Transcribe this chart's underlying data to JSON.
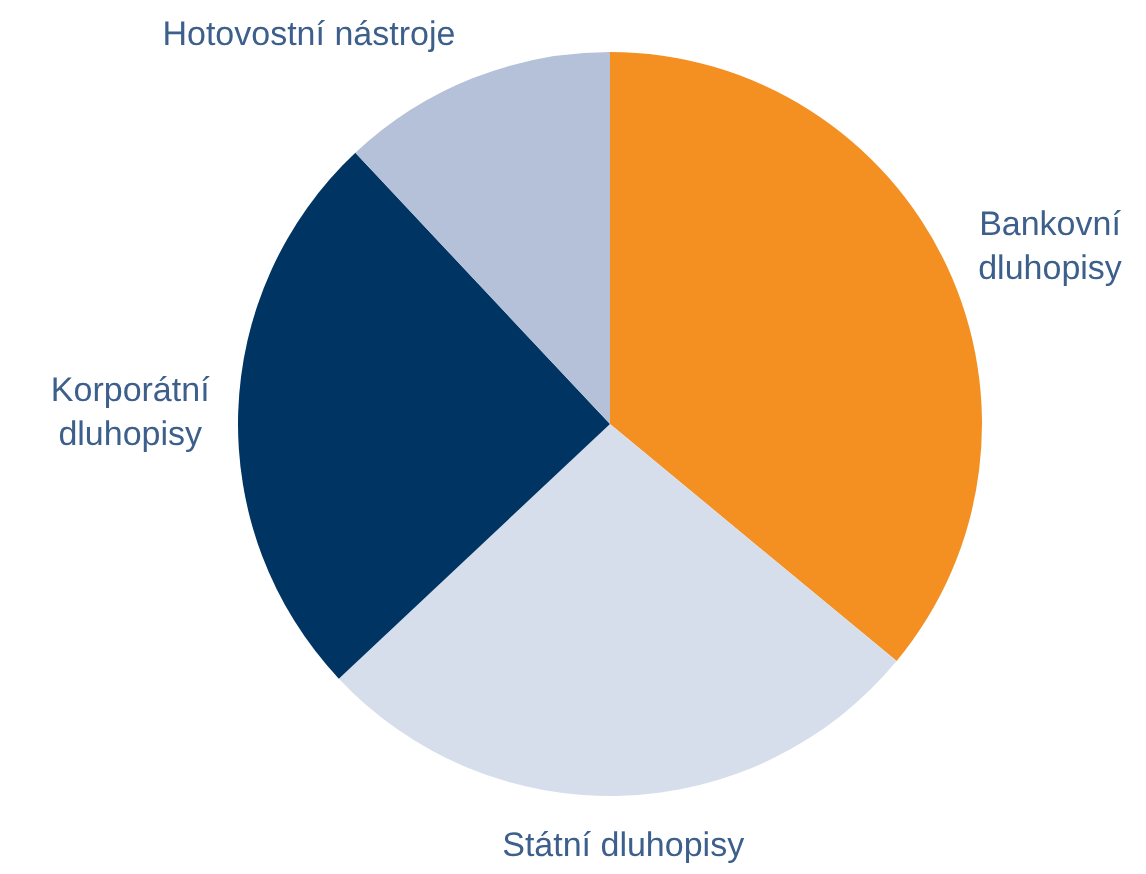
{
  "chart_data": {
    "type": "pie",
    "categories": [
      "Bankovní dluhopisy",
      "Státní dluhopisy",
      "Korporátní dluhopisy",
      "Hotovostní nástroje"
    ],
    "values": [
      36,
      27,
      25,
      12
    ],
    "colors": [
      "#f39021",
      "#d7deeb",
      "#003462",
      "#b5c1d8"
    ]
  }
}
